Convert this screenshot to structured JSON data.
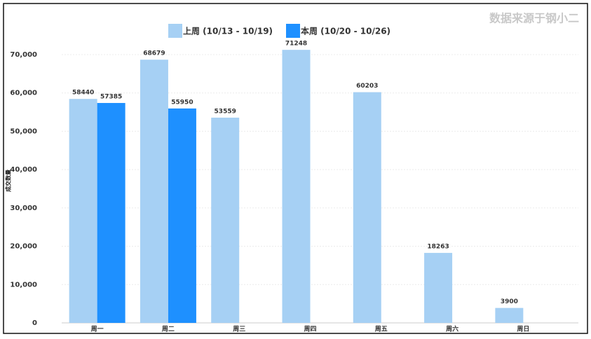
{
  "chart_data": {
    "type": "bar",
    "source": "数据来源于钢小二",
    "y_label": "成交数量",
    "categories": [
      "周一",
      "周二",
      "周三",
      "周四",
      "周五",
      "周六",
      "周日"
    ],
    "series": [
      {
        "name": "上周 (10/13 - 10/19)",
        "color": "#a6d0f4",
        "values": [
          58440,
          68679,
          53559,
          71248,
          60203,
          18263,
          3900
        ]
      },
      {
        "name": "本周 (10/20 - 10/26)",
        "color": "#1e90ff",
        "values": [
          57385,
          55950,
          null,
          null,
          null,
          null,
          null
        ]
      }
    ],
    "ylim": [
      0,
      70000
    ],
    "yticks": [
      0,
      {
        "value": 10000,
        "label": "10,000"
      },
      {
        "value": 20000,
        "label": "20,000"
      },
      {
        "value": 30000,
        "label": "30,000"
      },
      {
        "value": 40000,
        "label": "40,000"
      },
      {
        "value": 50000,
        "label": "50,000"
      },
      {
        "value": 60000,
        "label": "60,000"
      },
      {
        "value": 70000,
        "label": "70,000"
      }
    ],
    "grid": true,
    "legend": "top"
  }
}
